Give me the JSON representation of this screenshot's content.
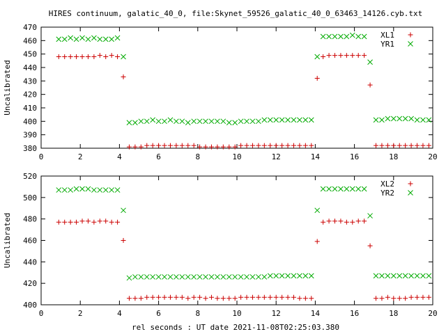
{
  "title": "HIRES continuum, galatic_40_0, file:Skynet_59526_galatic_40_0_63463_14126.cyb.txt",
  "xlabel": "rel seconds : UT date 2021-11-08T02:25:03.380",
  "colors": {
    "XL": "#cc0000",
    "YR": "#00aa00"
  },
  "chart_data": [
    {
      "type": "scatter",
      "ylabel": "Uncalibrated",
      "xlim": [
        0,
        20
      ],
      "ylim": [
        380,
        470
      ],
      "xticks": [
        0,
        2,
        4,
        6,
        8,
        10,
        12,
        14,
        16,
        18,
        20
      ],
      "yticks": [
        380,
        390,
        400,
        410,
        420,
        430,
        440,
        450,
        460,
        470
      ],
      "legend_position": "top-right",
      "series": [
        {
          "name": "XL1",
          "marker": "plus",
          "x": [
            0.9,
            1.2,
            1.5,
            1.8,
            2.1,
            2.4,
            2.7,
            3.0,
            3.3,
            3.6,
            3.9,
            4.2,
            4.5,
            4.8,
            5.1,
            5.4,
            5.7,
            6.0,
            6.3,
            6.6,
            6.9,
            7.2,
            7.5,
            7.8,
            8.1,
            8.4,
            8.7,
            9.0,
            9.3,
            9.6,
            9.9,
            10.2,
            10.5,
            10.8,
            11.1,
            11.4,
            11.7,
            12.0,
            12.3,
            12.6,
            12.9,
            13.2,
            13.5,
            13.8,
            14.1,
            14.4,
            14.7,
            15.0,
            15.3,
            15.6,
            15.9,
            16.2,
            16.5,
            16.8,
            17.1,
            17.4,
            17.7,
            18.0,
            18.3,
            18.6,
            18.9,
            19.2,
            19.5,
            19.8
          ],
          "y": [
            448,
            448,
            448,
            448,
            448,
            448,
            448,
            449,
            448,
            449,
            448,
            433,
            381,
            381,
            381,
            382,
            382,
            382,
            382,
            382,
            382,
            382,
            382,
            382,
            381,
            381,
            381,
            381,
            381,
            381,
            381,
            382,
            382,
            382,
            382,
            382,
            382,
            382,
            382,
            382,
            382,
            382,
            382,
            382,
            432,
            448,
            449,
            449,
            449,
            449,
            449,
            449,
            449,
            427,
            382,
            382,
            382,
            382,
            382,
            382,
            382,
            382,
            382,
            382
          ]
        },
        {
          "name": "YR1",
          "marker": "cross",
          "x": [
            0.9,
            1.2,
            1.5,
            1.8,
            2.1,
            2.4,
            2.7,
            3.0,
            3.3,
            3.6,
            3.9,
            4.2,
            4.5,
            4.8,
            5.1,
            5.4,
            5.7,
            6.0,
            6.3,
            6.6,
            6.9,
            7.2,
            7.5,
            7.8,
            8.1,
            8.4,
            8.7,
            9.0,
            9.3,
            9.6,
            9.9,
            10.2,
            10.5,
            10.8,
            11.1,
            11.4,
            11.7,
            12.0,
            12.3,
            12.6,
            12.9,
            13.2,
            13.5,
            13.8,
            14.1,
            14.4,
            14.7,
            15.0,
            15.3,
            15.6,
            15.9,
            16.2,
            16.5,
            16.8,
            17.1,
            17.4,
            17.7,
            18.0,
            18.3,
            18.6,
            18.9,
            19.2,
            19.5,
            19.8
          ],
          "y": [
            461,
            461,
            462,
            461,
            462,
            461,
            462,
            461,
            461,
            461,
            462,
            448,
            399,
            399,
            400,
            400,
            401,
            400,
            400,
            401,
            400,
            400,
            399,
            400,
            400,
            400,
            400,
            400,
            400,
            399,
            399,
            400,
            400,
            400,
            400,
            401,
            401,
            401,
            401,
            401,
            401,
            401,
            401,
            401,
            448,
            463,
            463,
            463,
            463,
            463,
            464,
            463,
            463,
            444,
            401,
            401,
            402,
            402,
            402,
            402,
            402,
            401,
            401,
            401
          ]
        }
      ]
    },
    {
      "type": "scatter",
      "ylabel": "Uncalibrated",
      "xlim": [
        0,
        20
      ],
      "ylim": [
        400,
        520
      ],
      "xticks": [
        0,
        2,
        4,
        6,
        8,
        10,
        12,
        14,
        16,
        18,
        20
      ],
      "yticks": [
        400,
        420,
        440,
        460,
        480,
        500,
        520
      ],
      "legend_position": "top-right",
      "series": [
        {
          "name": "XL2",
          "marker": "plus",
          "x": [
            0.9,
            1.2,
            1.5,
            1.8,
            2.1,
            2.4,
            2.7,
            3.0,
            3.3,
            3.6,
            3.9,
            4.2,
            4.5,
            4.8,
            5.1,
            5.4,
            5.7,
            6.0,
            6.3,
            6.6,
            6.9,
            7.2,
            7.5,
            7.8,
            8.1,
            8.4,
            8.7,
            9.0,
            9.3,
            9.6,
            9.9,
            10.2,
            10.5,
            10.8,
            11.1,
            11.4,
            11.7,
            12.0,
            12.3,
            12.6,
            12.9,
            13.2,
            13.5,
            13.8,
            14.1,
            14.4,
            14.7,
            15.0,
            15.3,
            15.6,
            15.9,
            16.2,
            16.5,
            16.8,
            17.1,
            17.4,
            17.7,
            18.0,
            18.3,
            18.6,
            18.9,
            19.2,
            19.5,
            19.8
          ],
          "y": [
            477,
            477,
            477,
            477,
            478,
            478,
            477,
            478,
            478,
            477,
            477,
            460,
            406,
            406,
            406,
            407,
            407,
            407,
            407,
            407,
            407,
            407,
            406,
            407,
            407,
            406,
            407,
            406,
            406,
            406,
            406,
            407,
            407,
            407,
            407,
            407,
            407,
            407,
            407,
            407,
            407,
            406,
            406,
            406,
            459,
            477,
            478,
            478,
            478,
            477,
            477,
            478,
            478,
            455,
            406,
            406,
            407,
            406,
            406,
            406,
            407,
            407,
            407,
            407
          ]
        },
        {
          "name": "YR2",
          "marker": "cross",
          "x": [
            0.9,
            1.2,
            1.5,
            1.8,
            2.1,
            2.4,
            2.7,
            3.0,
            3.3,
            3.6,
            3.9,
            4.2,
            4.5,
            4.8,
            5.1,
            5.4,
            5.7,
            6.0,
            6.3,
            6.6,
            6.9,
            7.2,
            7.5,
            7.8,
            8.1,
            8.4,
            8.7,
            9.0,
            9.3,
            9.6,
            9.9,
            10.2,
            10.5,
            10.8,
            11.1,
            11.4,
            11.7,
            12.0,
            12.3,
            12.6,
            12.9,
            13.2,
            13.5,
            13.8,
            14.1,
            14.4,
            14.7,
            15.0,
            15.3,
            15.6,
            15.9,
            16.2,
            16.5,
            16.8,
            17.1,
            17.4,
            17.7,
            18.0,
            18.3,
            18.6,
            18.9,
            19.2,
            19.5,
            19.8
          ],
          "y": [
            507,
            507,
            507,
            508,
            508,
            508,
            507,
            507,
            507,
            507,
            507,
            488,
            425,
            426,
            426,
            426,
            426,
            426,
            426,
            426,
            426,
            426,
            426,
            426,
            426,
            426,
            426,
            426,
            426,
            426,
            426,
            426,
            426,
            426,
            426,
            426,
            427,
            427,
            427,
            427,
            427,
            427,
            427,
            427,
            488,
            508,
            508,
            508,
            508,
            508,
            508,
            508,
            508,
            483,
            427,
            427,
            427,
            427,
            427,
            427,
            427,
            427,
            427,
            427
          ]
        }
      ]
    }
  ]
}
